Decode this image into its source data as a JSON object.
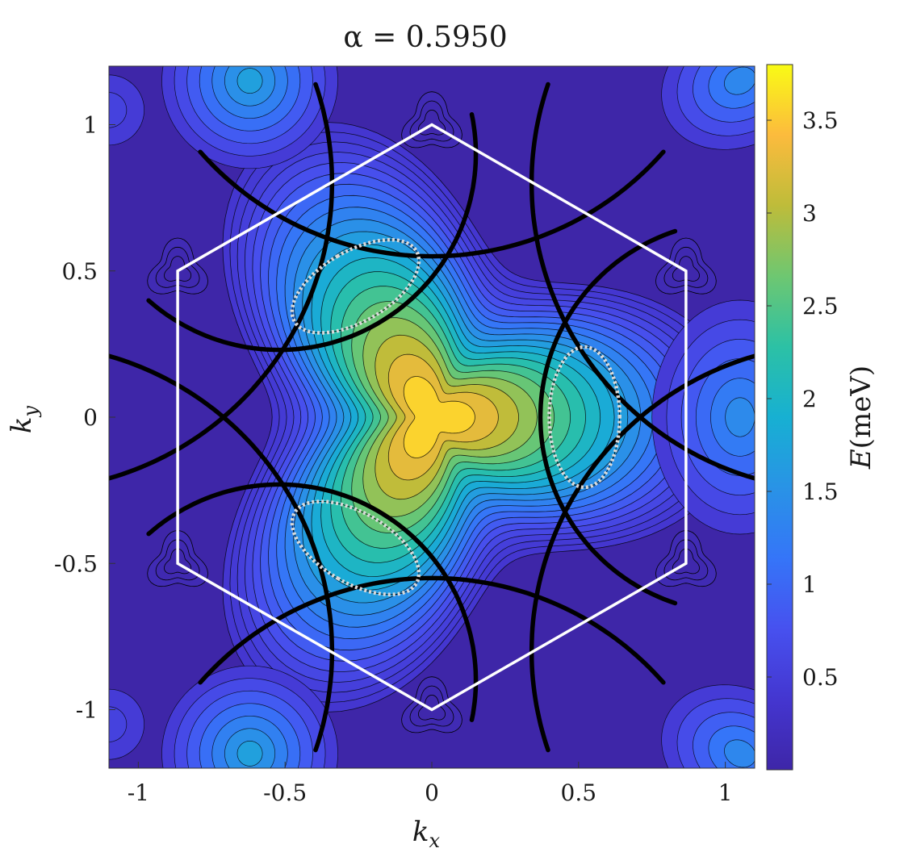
{
  "chart_data": {
    "type": "heatmap",
    "subtype": "filled-contour",
    "title": "α = 0.5950",
    "xlabel": "k_x",
    "ylabel": "k_y",
    "xlim": [
      -1.1,
      1.1
    ],
    "ylim": [
      -1.2,
      1.2
    ],
    "x_ticks": [
      -1,
      -0.5,
      0,
      0.5,
      1
    ],
    "x_tick_labels": [
      "-1",
      "-0.5",
      "0",
      "0.5",
      "1"
    ],
    "y_ticks": [
      -1,
      -0.5,
      0,
      0.5,
      1
    ],
    "y_tick_labels": [
      "-1",
      "-0.5",
      "0",
      "0.5",
      "1"
    ],
    "colorbar": {
      "label": "E(meV)",
      "range": [
        0,
        3.8
      ],
      "ticks": [
        0.5,
        1,
        1.5,
        2,
        2.5,
        3,
        3.5
      ],
      "tick_labels": [
        "0.5",
        "1",
        "1.5",
        "2",
        "2.5",
        "3",
        "3.5"
      ],
      "colormap": "parula"
    },
    "maximum": {
      "x": 0,
      "y": 0,
      "value": 3.8
    },
    "brillouin_zone": {
      "shape": "hexagon",
      "color": "#ffffff",
      "vertices": [
        [
          0,
          1
        ],
        [
          0.866,
          0.5
        ],
        [
          0.866,
          -0.5
        ],
        [
          0,
          -1
        ],
        [
          -0.866,
          -0.5
        ],
        [
          -0.866,
          0.5
        ]
      ]
    },
    "dotted_pockets": {
      "color": "#d9d9d9",
      "centers": [
        [
          0.5,
          0
        ],
        [
          -0.25,
          0.43
        ],
        [
          -0.25,
          -0.43
        ]
      ]
    },
    "thick_contour_color": "#000000",
    "grid": false,
    "legend": "none"
  }
}
